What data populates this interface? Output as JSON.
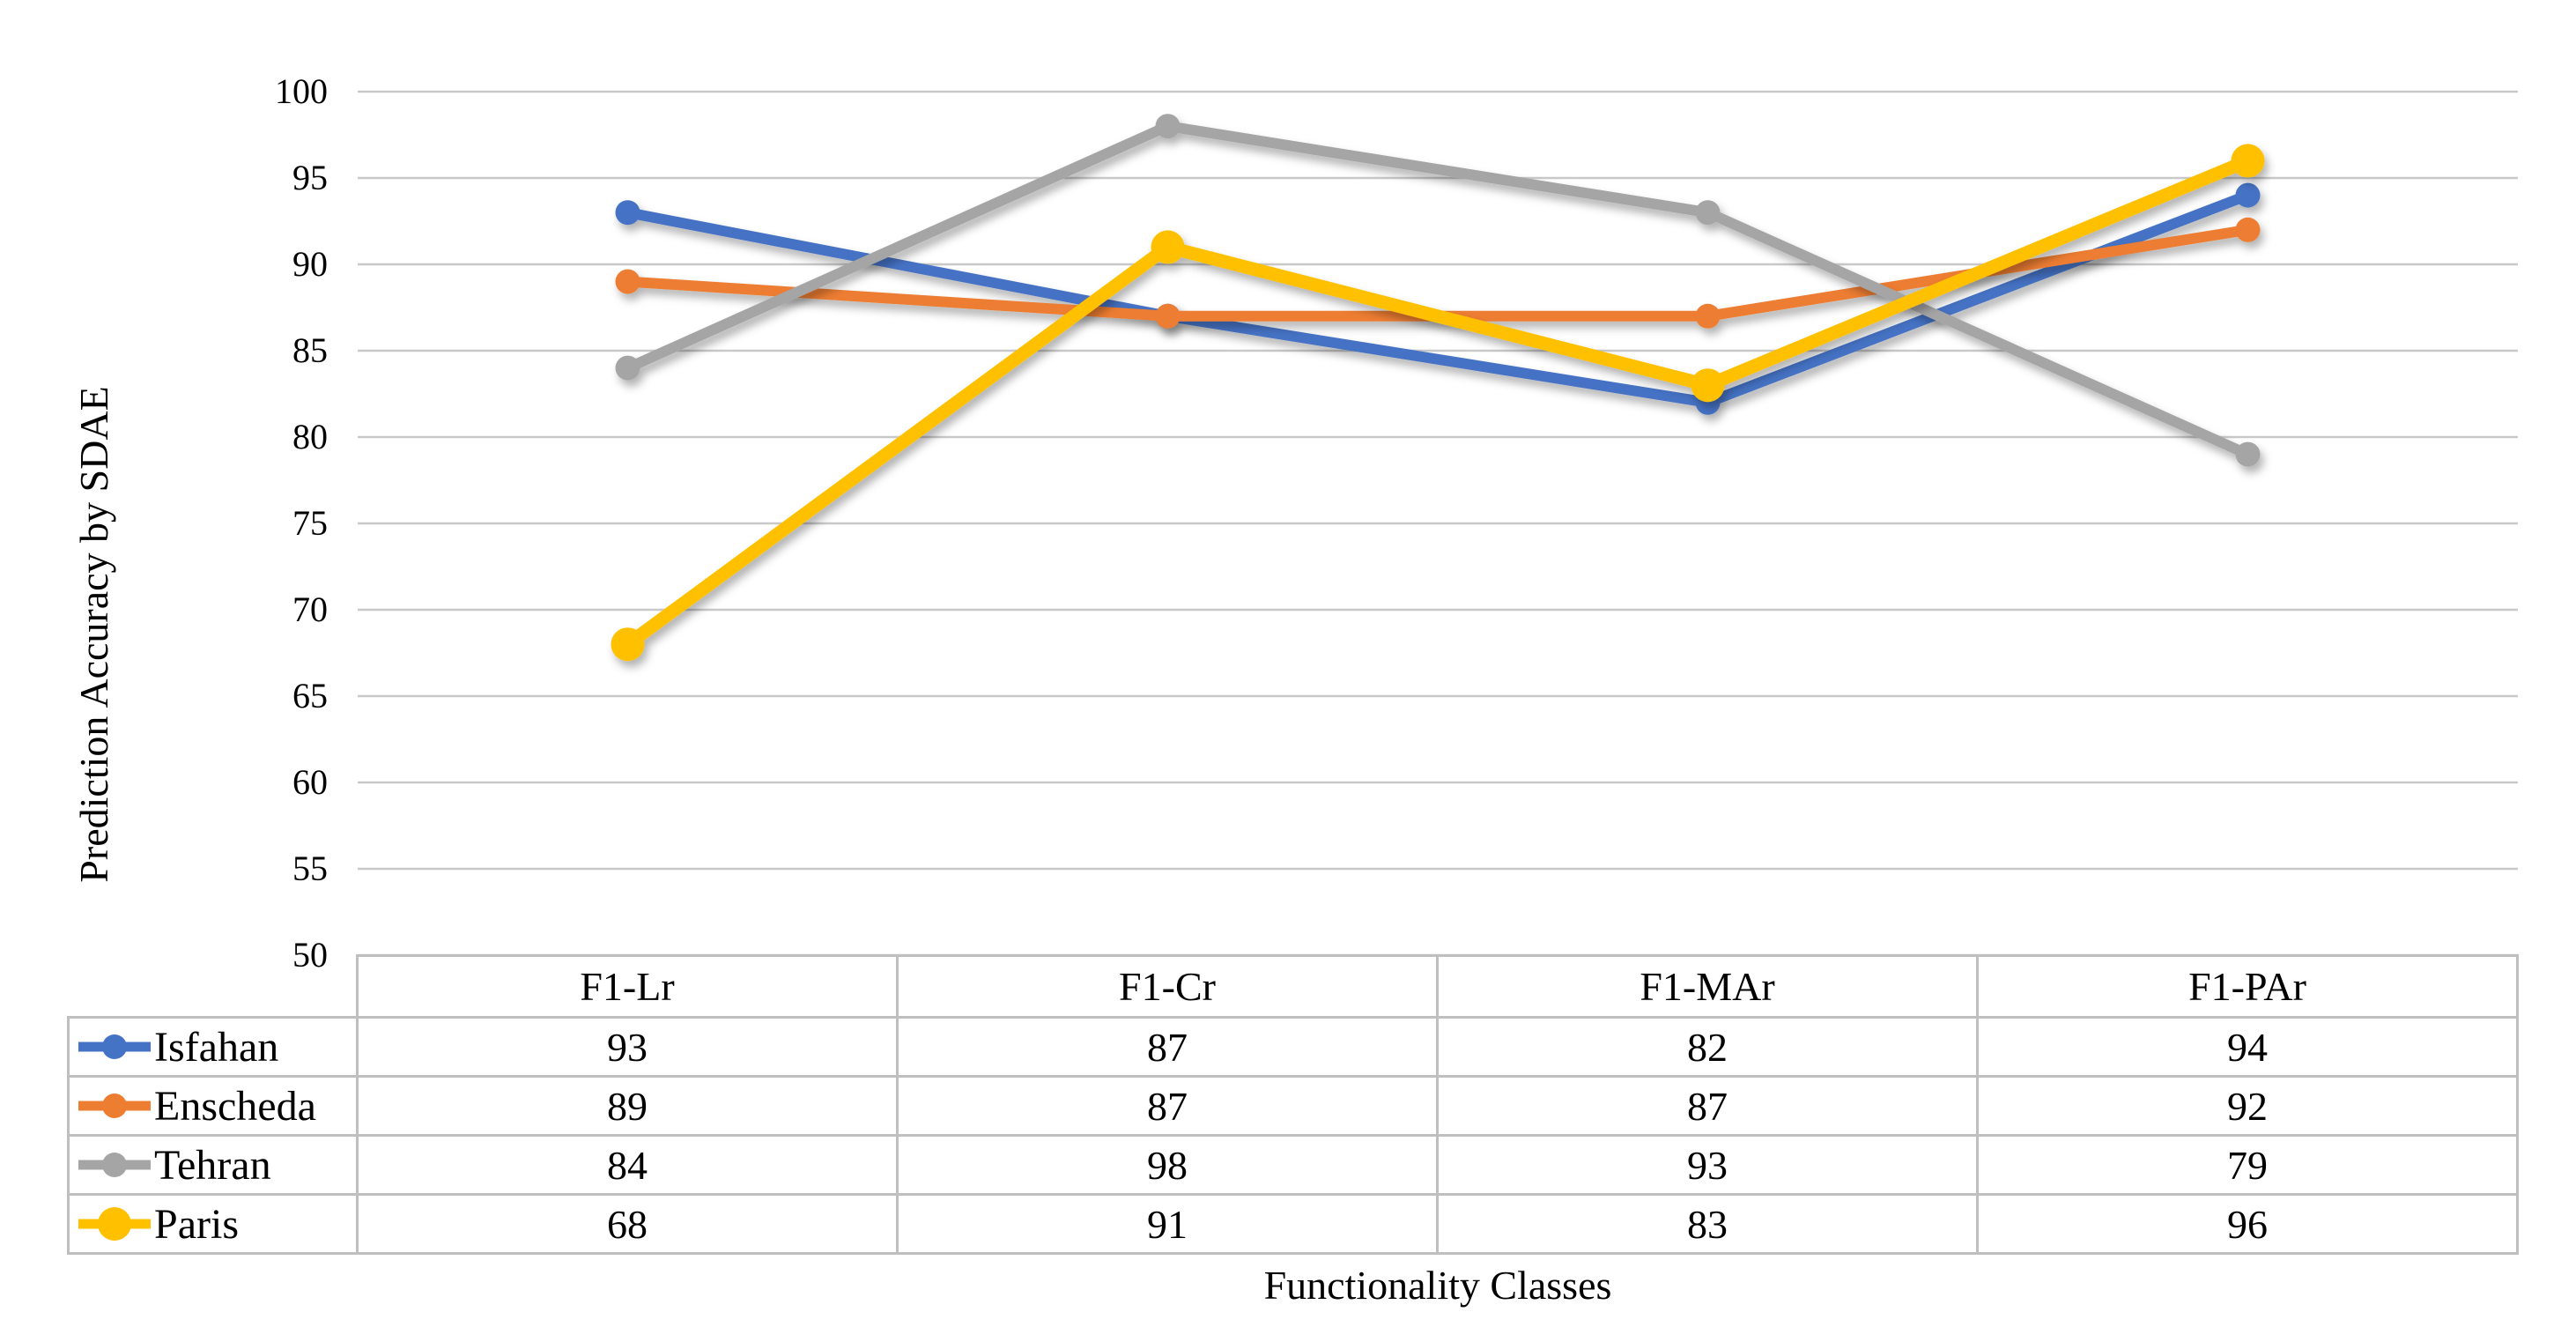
{
  "chart_data": {
    "type": "line",
    "title": "",
    "categories": [
      "F1-Lr",
      "F1-Cr",
      "F1-MAr",
      "F1-PAr"
    ],
    "series": [
      {
        "name": "Isfahan",
        "color": "#4472C4",
        "values": [
          93,
          87,
          82,
          94
        ],
        "line_width": 12,
        "marker_radius": 14
      },
      {
        "name": "Enscheda",
        "color": "#ED7D31",
        "values": [
          89,
          87,
          87,
          92
        ],
        "line_width": 12,
        "marker_radius": 14
      },
      {
        "name": "Tehran",
        "color": "#A5A5A5",
        "values": [
          84,
          98,
          93,
          79
        ],
        "line_width": 12,
        "marker_radius": 14
      },
      {
        "name": "Paris",
        "color": "#FFC000",
        "values": [
          68,
          91,
          83,
          96
        ],
        "line_width": 15,
        "marker_radius": 19
      }
    ],
    "xlabel": "Functionality Classes",
    "ylabel": "Prediction Accuracy by SDAE",
    "ylim": [
      50,
      100
    ],
    "yticks": [
      100,
      95,
      90,
      85,
      80,
      75,
      70,
      65,
      60,
      55,
      50
    ],
    "grid": "horizontal",
    "gridline_color": "#C9C9C9",
    "table_border_color": "#BFBFBF",
    "legend_position": "table-left",
    "data_table_shown": true,
    "background": "#FFFFFF",
    "marker_shape": "circle"
  }
}
